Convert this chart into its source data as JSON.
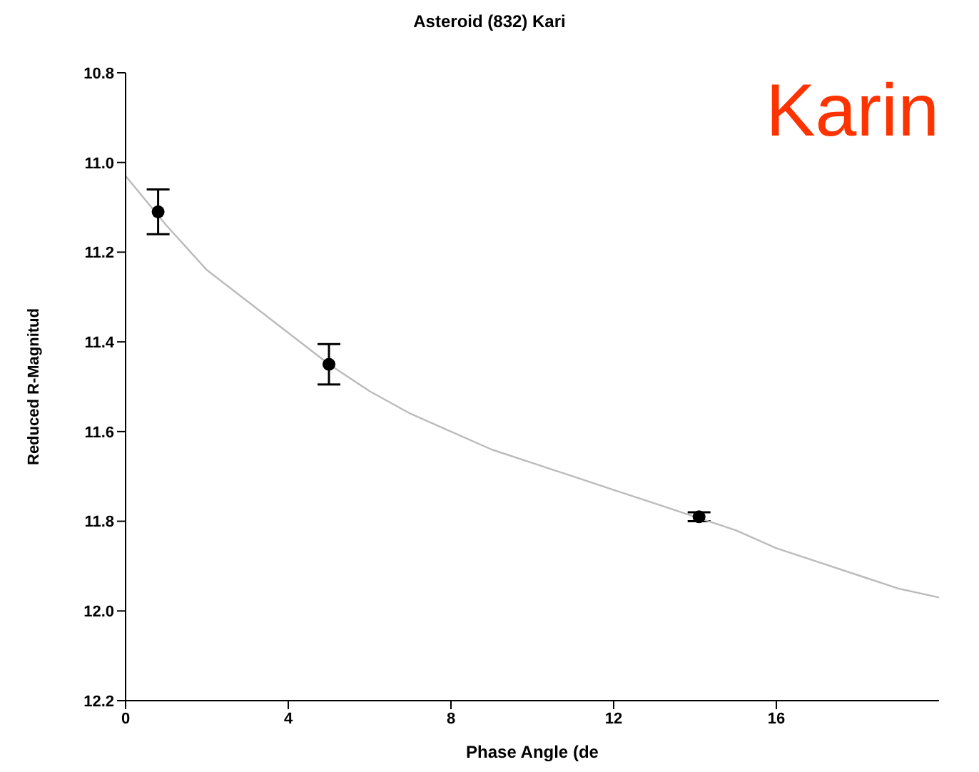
{
  "chart_data": {
    "type": "scatter",
    "title": "Asteroid (832) Kari",
    "xlabel": "Phase Angle (de",
    "ylabel": "Reduced R-Magnitud",
    "annotations": [
      "Karin"
    ],
    "series": [
      {
        "color": "#000000",
        "x": [
          0.8,
          5.0,
          14.1
        ],
        "values": [
          11.11,
          11.45,
          11.79
        ],
        "errors": [
          0.05,
          0.045,
          0.01
        ],
        "marker": "circle"
      },
      {
        "type": "line",
        "color": "#bbbbbb",
        "x": [
          0,
          1,
          2,
          3,
          4,
          5,
          6,
          7,
          8,
          9,
          10,
          11,
          12,
          13,
          14,
          15,
          16,
          17,
          18,
          19,
          20
        ],
        "values": [
          11.03,
          11.14,
          11.24,
          11.31,
          11.38,
          11.45,
          11.51,
          11.56,
          11.6,
          11.64,
          11.67,
          11.7,
          11.73,
          11.76,
          11.79,
          11.82,
          11.86,
          11.89,
          11.92,
          11.95,
          11.97
        ],
        "marker": "none",
        "line_style": "solid"
      }
    ],
    "xlim": [
      0,
      20
    ],
    "xticks": [
      0,
      4,
      8,
      12,
      16
    ],
    "ylim": [
      12.2,
      10.8
    ],
    "yticks": [
      10.8,
      {
        "value": 11,
        "label": "11.0"
      },
      11.2,
      11.4,
      11.6,
      11.8,
      {
        "value": 12,
        "label": "12.0"
      },
      12.2
    ]
  }
}
